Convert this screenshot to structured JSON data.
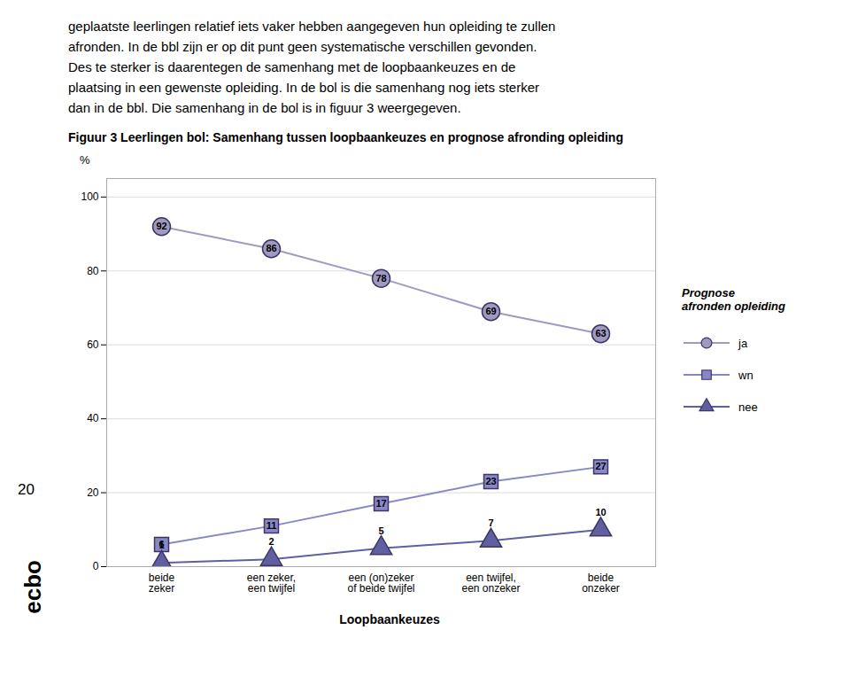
{
  "chart_data": {
    "type": "line",
    "title": "Figuur 3  Leerlingen bol: Samenhang tussen loopbaankeuzes en prognose afronding opleiding",
    "annotations": [
      "geplaatste leerlingen relatief iets vaker hebben aangegeven hun opleiding te zullen\nafronden. In de bbl zijn er op dit punt geen systematische verschillen gevonden.\nDes te sterker is daarentegen de samenhang met de loopbaankeuzes en de\nplaatsing in een gewenste opleiding. In de bol is die samenhang nog iets sterker\ndan in de bbl. Die samenhang in de bol is in figuur 3 weergegeven.",
      "20",
      "ecbo"
    ],
    "x_label": "Loopbaankeuzes",
    "y_label": "%",
    "legend_title": "Prognose\nafronden opleiding",
    "categories": [
      "beide\nzeker",
      "een zeker,\neen twijfel",
      "een (on)zeker\nof beide twijfel",
      "een twijfel,\neen onzeker",
      "beide\nonzeker"
    ],
    "series": [
      {
        "name": "ja",
        "color": "#a09ac0",
        "marker": "circle",
        "values": [
          92,
          86,
          78,
          69,
          63
        ]
      },
      {
        "name": "wn",
        "color": "#8888c8",
        "marker": "square",
        "values": [
          6,
          11,
          17,
          23,
          27
        ]
      },
      {
        "name": "nee",
        "color": "#6060a0",
        "marker": "triangle",
        "values": [
          1,
          2,
          5,
          7,
          10
        ]
      }
    ],
    "ylim": [
      0,
      105
    ],
    "yticks": [
      0,
      20,
      40,
      60,
      80,
      100
    ],
    "grid": true,
    "legend": "right",
    "data_labels": true
  }
}
